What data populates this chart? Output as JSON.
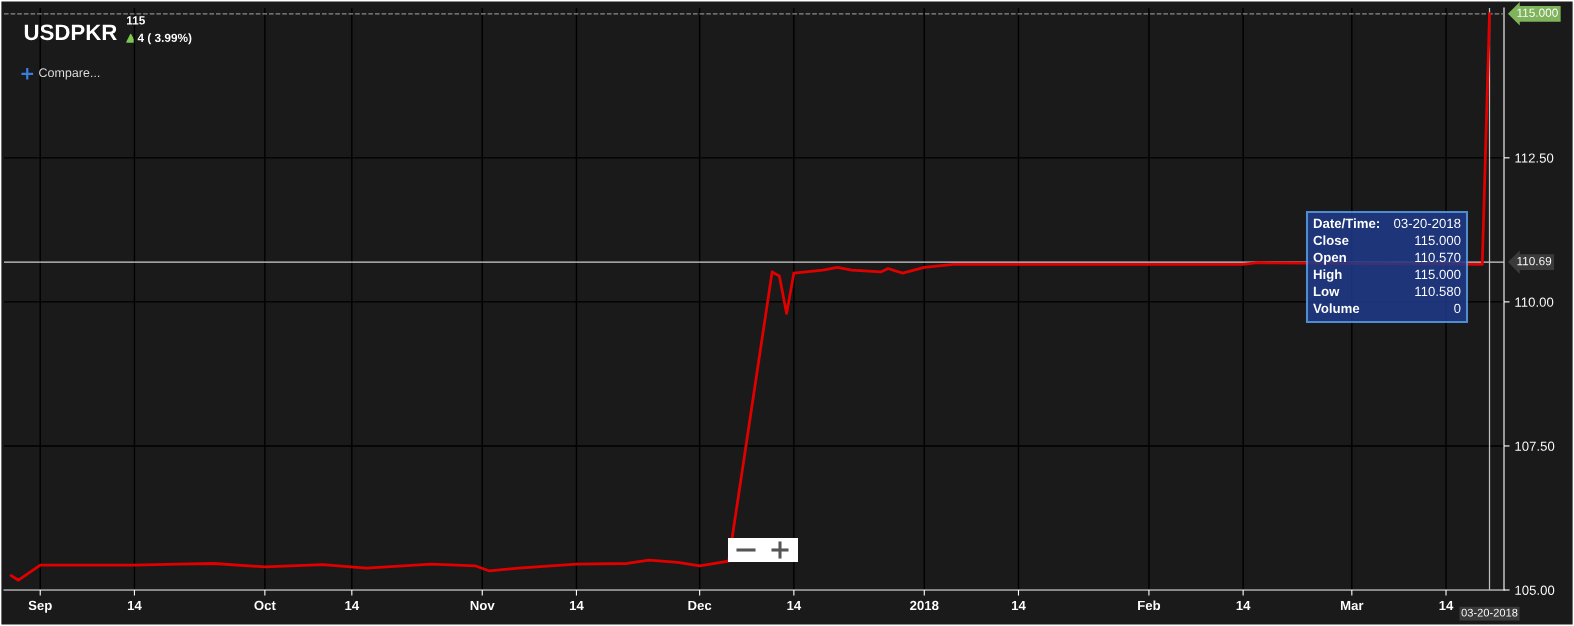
{
  "chart_data": {
    "type": "line",
    "title": "USDPKR",
    "x": [
      "2017-08-28",
      "2017-08-29",
      "2017-09-01",
      "2017-09-14",
      "2017-09-20",
      "2017-09-25",
      "2017-10-02",
      "2017-10-10",
      "2017-10-16",
      "2017-10-25",
      "2017-10-31",
      "2017-11-02",
      "2017-11-06",
      "2017-11-14",
      "2017-11-21",
      "2017-11-24",
      "2017-11-28",
      "2017-12-01",
      "2017-12-05",
      "2017-12-11",
      "2017-12-12",
      "2017-12-13",
      "2017-12-14",
      "2017-12-18",
      "2017-12-20",
      "2017-12-22",
      "2017-12-26",
      "2017-12-27",
      "2017-12-29",
      "2018-01-01",
      "2018-01-05",
      "2018-01-15",
      "2018-02-01",
      "2018-02-14",
      "2018-02-16",
      "2018-03-19",
      "2018-03-20"
    ],
    "series": [
      {
        "color": "#e00000",
        "values": [
          105.25,
          105.17,
          105.43,
          105.43,
          105.45,
          105.46,
          105.4,
          105.44,
          105.38,
          105.45,
          105.42,
          105.33,
          105.38,
          105.45,
          105.46,
          105.52,
          105.48,
          105.42,
          105.5,
          110.52,
          110.45,
          109.8,
          110.5,
          110.55,
          110.6,
          110.55,
          110.52,
          110.58,
          110.5,
          110.6,
          110.65,
          110.65,
          110.65,
          110.65,
          110.68,
          110.65,
          115.0
        ]
      }
    ],
    "xlim": [
      "2017-08-27",
      "2018-03-22"
    ],
    "xticks": [
      {
        "value": "2017-09-01",
        "label": "Sep"
      },
      {
        "value": "2017-09-14",
        "label": "14"
      },
      {
        "value": "2017-10-02",
        "label": "Oct"
      },
      {
        "value": "2017-10-14",
        "label": "14"
      },
      {
        "value": "2017-11-01",
        "label": "Nov"
      },
      {
        "value": "2017-11-14",
        "label": "14"
      },
      {
        "value": "2017-12-01",
        "label": "Dec"
      },
      {
        "value": "2017-12-14",
        "label": "14"
      },
      {
        "value": "2018-01-01",
        "label": "2018"
      },
      {
        "value": "2018-01-14",
        "label": "14"
      },
      {
        "value": "2018-02-01",
        "label": "Feb"
      },
      {
        "value": "2018-02-14",
        "label": "14"
      },
      {
        "value": "2018-03-01",
        "label": "Mar"
      },
      {
        "value": "2018-03-14",
        "label": "14"
      }
    ],
    "ylim": [
      105,
      115.1
    ],
    "yticks": [
      {
        "value": 105,
        "label": "105.00"
      },
      {
        "value": 107.5,
        "label": "107.50"
      },
      {
        "value": 110,
        "label": "110.00"
      },
      {
        "value": 112.5,
        "label": "112.50"
      }
    ],
    "grid": true,
    "legend": false,
    "marker": "none",
    "line_style": "solid",
    "ref_lines": [
      {
        "axis": "y",
        "value": 110.69,
        "label": "110.69",
        "color": "#d0d0d0"
      },
      {
        "axis": "y",
        "value": 115,
        "label": "115.000",
        "color": "#8a8a8a",
        "line_style": "dashed"
      },
      {
        "axis": "x",
        "value": "2018-03-20",
        "label": "03-20-2018",
        "color": "#bfbfbf"
      }
    ],
    "annotations": [
      "115",
      "4 ( 3.99%)",
      "Compare...",
      "Date/Time:\t03-20-2018",
      "Close\t115.000",
      "Open\t110.570",
      "High\t115.000",
      "Low\t110.580",
      "Volume\t0"
    ]
  }
}
